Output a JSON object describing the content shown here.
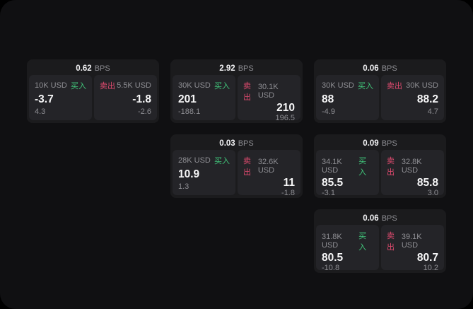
{
  "labels": {
    "buy": "买入",
    "sell": "卖出",
    "bps_unit": "BPS"
  },
  "colors": {
    "buy": "#41c77b",
    "sell": "#de4a6e",
    "muted": "#8e8e93",
    "card_bg": "#1b1b1d",
    "panel_bg": "#242428"
  },
  "cards": [
    {
      "bps": "0.62",
      "col": 0,
      "row": 0,
      "buy": {
        "amount": "10K USD",
        "value": "-3.7",
        "sub": "4.3"
      },
      "sell": {
        "amount": "5.5K USD",
        "value": "-1.8",
        "sub": "-2.6"
      }
    },
    {
      "bps": "2.92",
      "col": 1,
      "row": 0,
      "buy": {
        "amount": "30K USD",
        "value": "201",
        "sub": "-188.1"
      },
      "sell": {
        "amount": "30.1K USD",
        "value": "210",
        "sub": "196.5"
      }
    },
    {
      "bps": "0.06",
      "col": 2,
      "row": 0,
      "buy": {
        "amount": "30K USD",
        "value": "88",
        "sub": "-4.9"
      },
      "sell": {
        "amount": "30K USD",
        "value": "88.2",
        "sub": "4.7"
      }
    },
    {
      "bps": "0.03",
      "col": 1,
      "row": 1,
      "buy": {
        "amount": "28K USD",
        "value": "10.9",
        "sub": "1.3"
      },
      "sell": {
        "amount": "32.6K USD",
        "value": "11",
        "sub": "-1.8"
      }
    },
    {
      "bps": "0.09",
      "col": 2,
      "row": 1,
      "buy": {
        "amount": "34.1K USD",
        "value": "85.5",
        "sub": "-3.1"
      },
      "sell": {
        "amount": "32.8K USD",
        "value": "85.8",
        "sub": "3.0"
      }
    },
    {
      "bps": "0.06",
      "col": 2,
      "row": 2,
      "buy": {
        "amount": "31.8K USD",
        "value": "80.5",
        "sub": "-10.8"
      },
      "sell": {
        "amount": "39.1K USD",
        "value": "80.7",
        "sub": "10.2"
      }
    }
  ]
}
